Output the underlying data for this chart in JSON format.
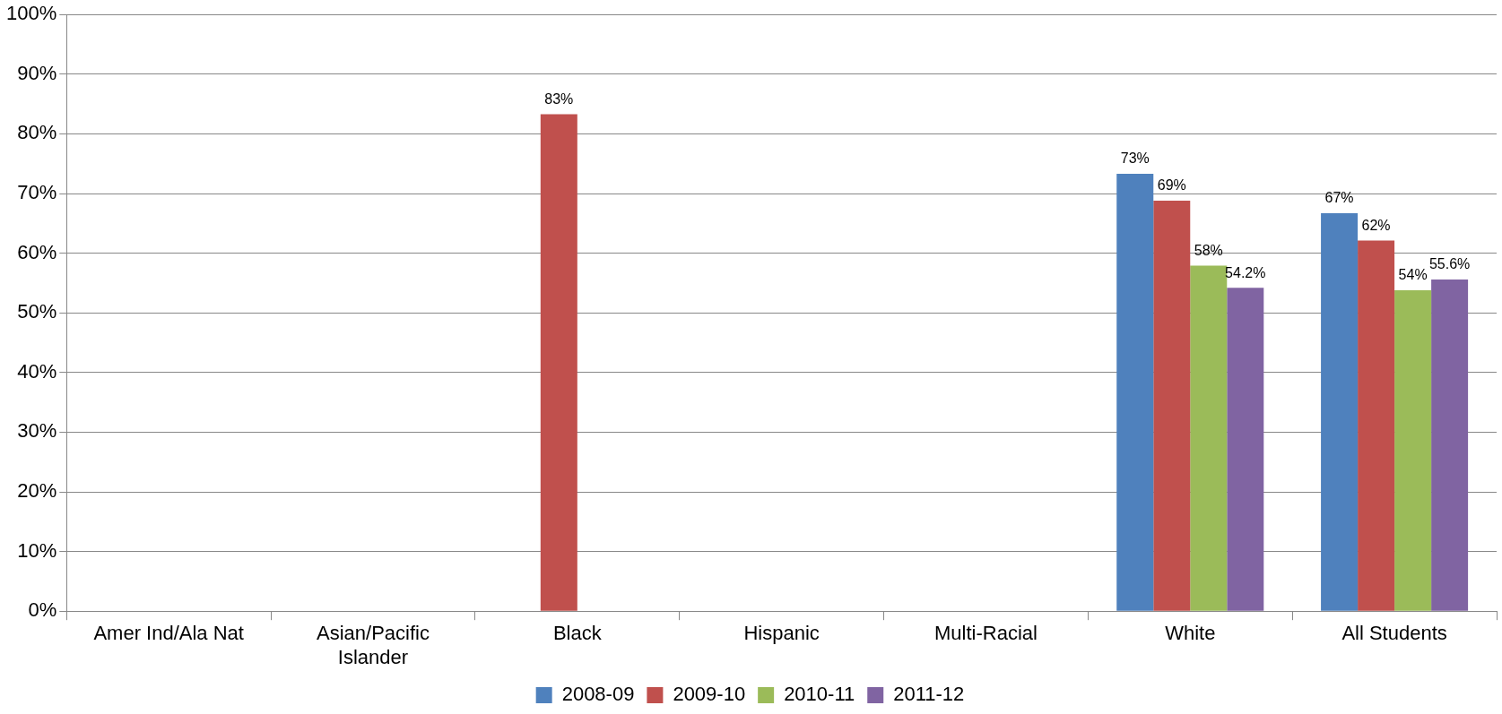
{
  "chart_data": {
    "type": "bar",
    "categories": [
      "Amer Ind/Ala Nat",
      "Asian/Pacific Islander",
      "Black",
      "Hispanic",
      "Multi-Racial",
      "White",
      "All Students"
    ],
    "series": [
      {
        "name": "2008-09",
        "color": "#4f81bd",
        "values": [
          null,
          null,
          null,
          null,
          null,
          73.3,
          66.7
        ],
        "value_labels": [
          null,
          null,
          null,
          null,
          null,
          "73%",
          "67%"
        ]
      },
      {
        "name": "2009-10",
        "color": "#c0504d",
        "values": [
          null,
          null,
          83.3,
          null,
          null,
          68.8,
          62.1
        ],
        "value_labels": [
          null,
          null,
          "83%",
          null,
          null,
          "69%",
          "62%"
        ]
      },
      {
        "name": "2010-11",
        "color": "#9bbb59",
        "values": [
          null,
          null,
          null,
          null,
          null,
          57.9,
          53.8
        ],
        "value_labels": [
          null,
          null,
          null,
          null,
          null,
          "58%",
          "54%"
        ]
      },
      {
        "name": "2011-12",
        "color": "#8064a2",
        "values": [
          null,
          null,
          null,
          null,
          null,
          54.2,
          55.6
        ],
        "value_labels": [
          null,
          null,
          null,
          null,
          null,
          "54.2%",
          "55.6%"
        ]
      }
    ],
    "ylim": [
      0,
      100
    ],
    "yticks": [
      {
        "value": 0,
        "label": "0%"
      },
      {
        "value": 10,
        "label": "10%"
      },
      {
        "value": 20,
        "label": "20%"
      },
      {
        "value": 30,
        "label": "30%"
      },
      {
        "value": 40,
        "label": "40%"
      },
      {
        "value": 50,
        "label": "50%"
      },
      {
        "value": 60,
        "label": "60%"
      },
      {
        "value": 70,
        "label": "70%"
      },
      {
        "value": 80,
        "label": "80%"
      },
      {
        "value": 90,
        "label": "90%"
      },
      {
        "value": 100,
        "label": "100%"
      }
    ],
    "grid": "y",
    "legend": "bottom"
  }
}
